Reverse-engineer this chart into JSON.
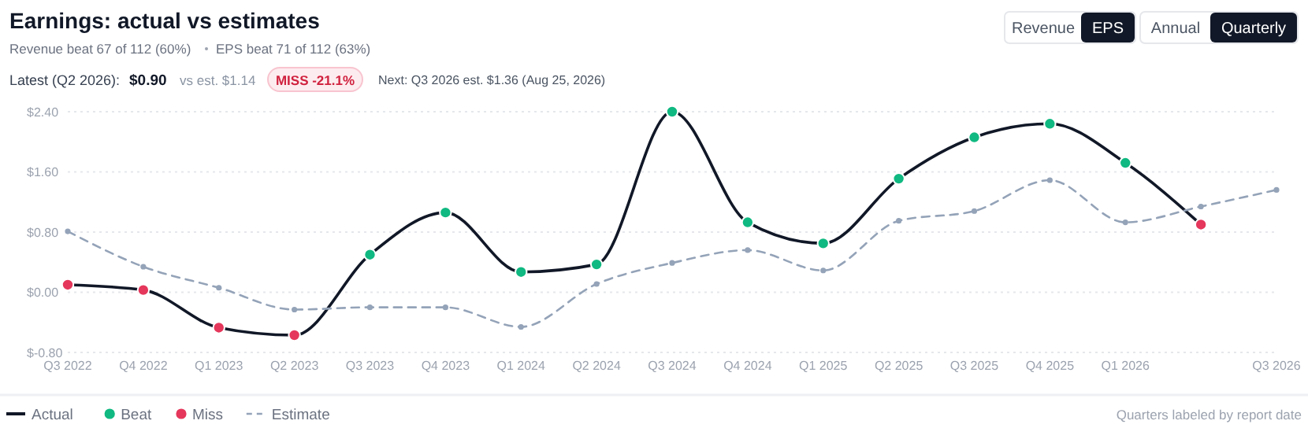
{
  "chart_data": {
    "type": "line",
    "title": "Earnings: actual vs estimates",
    "categories": [
      "Q3 2022",
      "Q4 2022",
      "Q1 2023",
      "Q2 2023",
      "Q3 2023",
      "Q4 2023",
      "Q1 2024",
      "Q2 2024",
      "Q3 2024",
      "Q4 2024",
      "Q1 2025",
      "Q2 2025",
      "Q3 2025",
      "Q4 2025",
      "Q1 2026",
      null,
      "Q3 2026"
    ],
    "series": [
      {
        "name": "Actual",
        "color": "#111827",
        "marker": "none",
        "values": [
          0.1,
          0.03,
          -0.47,
          -0.57,
          0.5,
          1.06,
          0.27,
          0.37,
          2.4,
          0.93,
          0.65,
          1.51,
          2.06,
          2.24,
          1.72,
          0.9,
          null
        ]
      },
      {
        "name": "Beat",
        "type": "scatter",
        "color": "#10b981",
        "marker": "circle",
        "values": [
          null,
          null,
          null,
          null,
          0.5,
          1.06,
          0.27,
          0.37,
          2.4,
          0.93,
          0.65,
          1.51,
          2.06,
          2.24,
          1.72,
          null,
          null
        ]
      },
      {
        "name": "Miss",
        "type": "scatter",
        "color": "#e5375b",
        "marker": "circle",
        "values": [
          0.1,
          0.03,
          -0.47,
          -0.57,
          null,
          null,
          null,
          null,
          null,
          null,
          null,
          null,
          null,
          null,
          null,
          0.9,
          null
        ]
      },
      {
        "name": "Estimate",
        "color": "#94a3b8",
        "marker": "circle",
        "line_style": "dashed",
        "values": [
          0.81,
          0.34,
          0.06,
          -0.23,
          -0.2,
          -0.2,
          -0.46,
          0.11,
          0.39,
          0.56,
          0.29,
          0.95,
          1.08,
          1.49,
          0.93,
          1.14,
          1.36
        ]
      }
    ],
    "ylim": [
      -0.8,
      2.4
    ],
    "yticks": [
      {
        "value": -0.8,
        "label": "$-0.80"
      },
      {
        "value": 0,
        "label": "$0.00"
      },
      {
        "value": 0.8,
        "label": "$0.80"
      },
      {
        "value": 1.6,
        "label": "$1.60"
      },
      {
        "value": 2.4,
        "label": "$2.40"
      }
    ],
    "grid": "y",
    "legend": "bottom left",
    "annotations": [
      "Revenue beat 67 of 112 (60%)",
      "EPS beat 71 of 112 (63%)",
      "Latest (Q2 2026):",
      "$0.90",
      "vs est. $1.14",
      "MISS -21.1%",
      "Next: Q3 2026 est. $1.36 (Aug 25, 2026)",
      "Quarters labeled by report date",
      "Revenue",
      "EPS",
      "Annual",
      "Quarterly"
    ]
  }
}
